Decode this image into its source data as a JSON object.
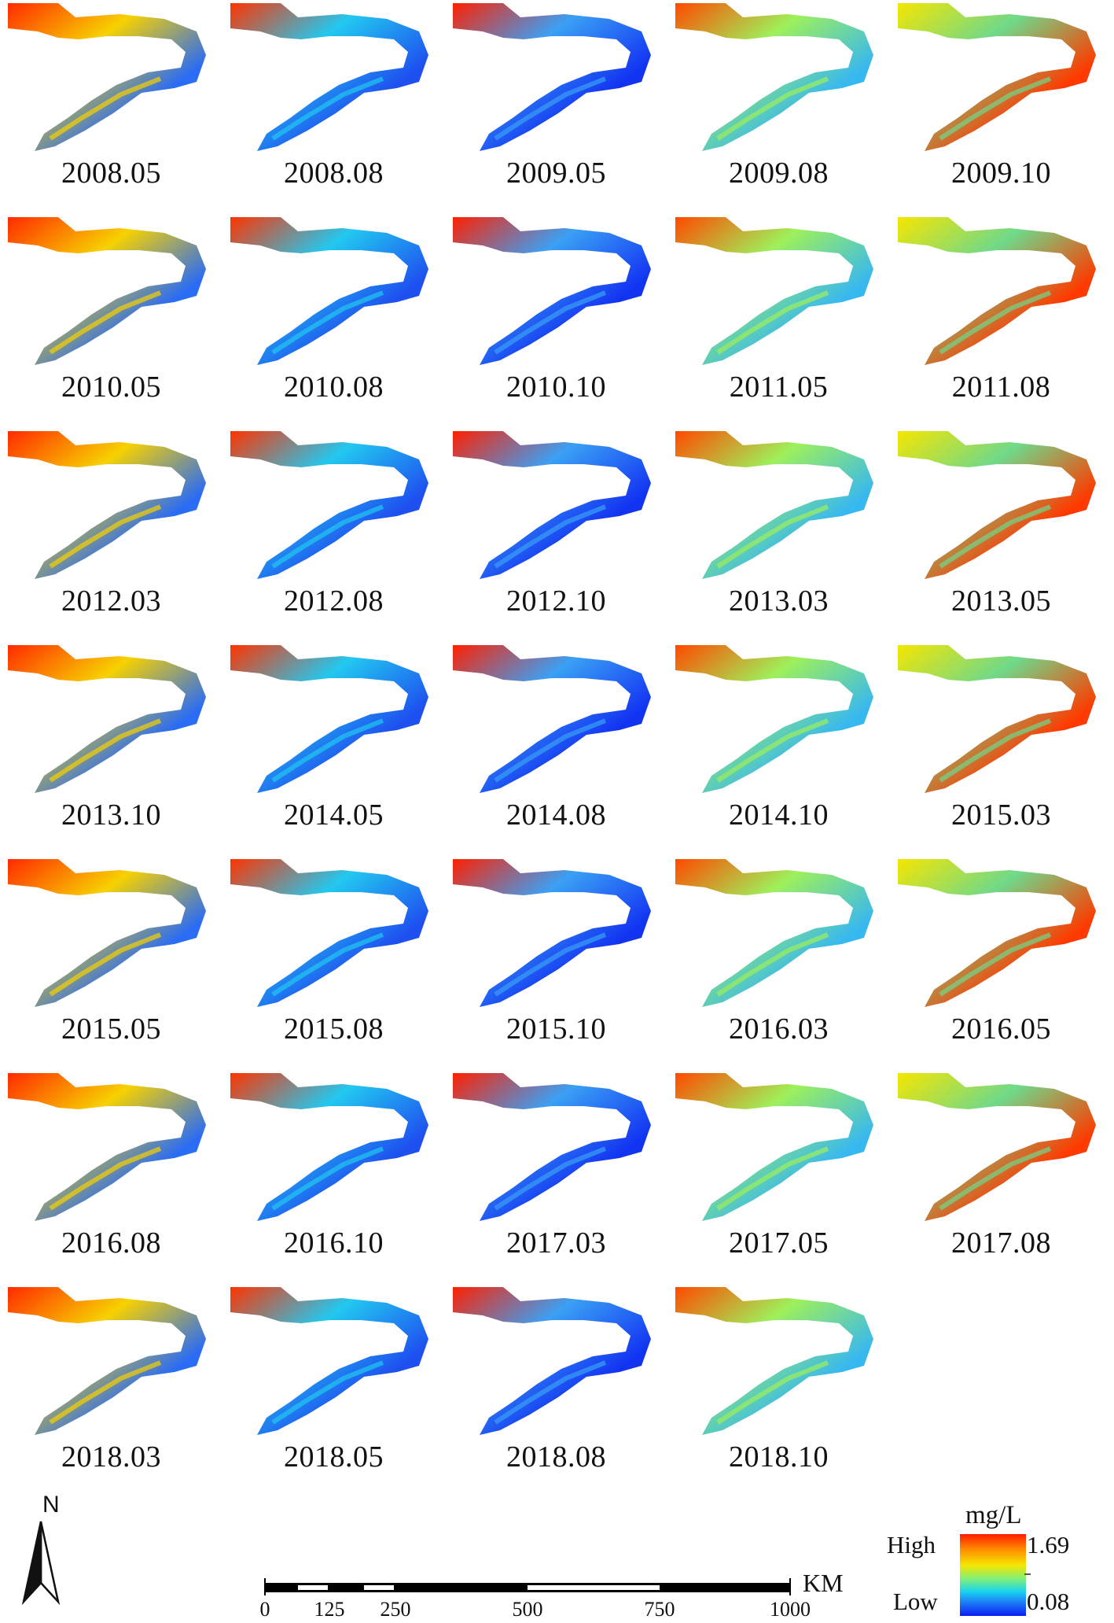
{
  "figure": {
    "panels": [
      {
        "date": "2008.05"
      },
      {
        "date": "2008.08"
      },
      {
        "date": "2009.05"
      },
      {
        "date": "2009.08"
      },
      {
        "date": "2009.10"
      },
      {
        "date": "2010.05"
      },
      {
        "date": "2010.08"
      },
      {
        "date": "2010.10"
      },
      {
        "date": "2011.05"
      },
      {
        "date": "2011.08"
      },
      {
        "date": "2012.03"
      },
      {
        "date": "2012.08"
      },
      {
        "date": "2012.10"
      },
      {
        "date": "2013.03"
      },
      {
        "date": "2013.05"
      },
      {
        "date": "2013.10"
      },
      {
        "date": "2014.05"
      },
      {
        "date": "2014.08"
      },
      {
        "date": "2014.10"
      },
      {
        "date": "2015.03"
      },
      {
        "date": "2015.05"
      },
      {
        "date": "2015.08"
      },
      {
        "date": "2015.10"
      },
      {
        "date": "2016.03"
      },
      {
        "date": "2016.05"
      },
      {
        "date": "2016.08"
      },
      {
        "date": "2016.10"
      },
      {
        "date": "2017.03"
      },
      {
        "date": "2017.05"
      },
      {
        "date": "2017.08"
      },
      {
        "date": "2018.03"
      },
      {
        "date": "2018.05"
      },
      {
        "date": "2018.08"
      },
      {
        "date": "2018.10"
      }
    ]
  },
  "north_arrow": {
    "label": "N"
  },
  "scale_bar": {
    "unit": "KM",
    "ticks": [
      "0",
      "125",
      "250",
      "500",
      "750",
      "1000"
    ]
  },
  "legend": {
    "unit": "mg/L",
    "high_label": "High",
    "low_label": "Low",
    "max_value": "1.69",
    "min_value": "0.08",
    "colors": [
      "#ff1a00",
      "#ff8a00",
      "#f5e600",
      "#7ef07a",
      "#18d4ee",
      "#1c7af5",
      "#0a1cf5"
    ]
  }
}
